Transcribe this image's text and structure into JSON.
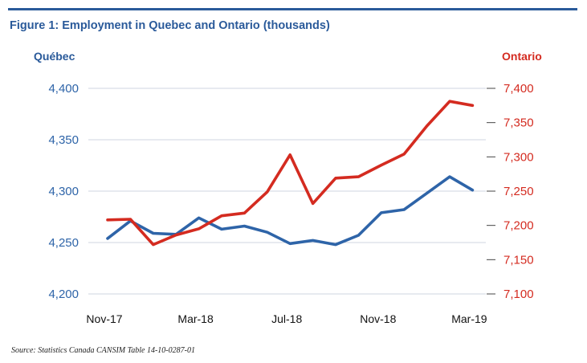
{
  "chart_data": {
    "type": "line",
    "title": "Figure 1: Employment in Quebec and Ontario (thousands)",
    "source": "Source: Statistics Canada CANSIM Table 14-10-0287-01",
    "x_tick_labels": [
      "Nov-17",
      "Mar-18",
      "Jul-18",
      "Nov-18",
      "Mar-19"
    ],
    "x_tick_indices": [
      0,
      4,
      8,
      12,
      16
    ],
    "left_axis": {
      "label": "Québec",
      "ylim": [
        4200,
        4400
      ],
      "ticks": [
        4200,
        4250,
        4300,
        4350,
        4400
      ],
      "tick_labels": [
        "4,200",
        "4,250",
        "4,300",
        "4,350",
        "4,400"
      ],
      "color": "#2e64a8"
    },
    "right_axis": {
      "label": "Ontario",
      "ylim": [
        7100,
        7400
      ],
      "ticks": [
        7100,
        7150,
        7200,
        7250,
        7300,
        7350,
        7400
      ],
      "tick_labels": [
        "7,100",
        "7,150",
        "7,200",
        "7,250",
        "7,300",
        "7,350",
        "7,400"
      ],
      "color": "#d42b20"
    },
    "grid": "horizontal",
    "series": [
      {
        "name": "Québec",
        "axis": "left",
        "color": "#2e64a8",
        "values": [
          4254,
          4271,
          4259,
          4258,
          4274,
          4263,
          4266,
          4260,
          4249,
          4252,
          4248,
          4257,
          4279,
          4282,
          4298,
          4314,
          4301
        ]
      },
      {
        "name": "Ontario",
        "axis": "right",
        "color": "#d42b20",
        "values": [
          7208,
          7209,
          7172,
          7186,
          7195,
          7214,
          7218,
          7249,
          7303,
          7232,
          7269,
          7271,
          7288,
          7304,
          7345,
          7381,
          7375
        ]
      }
    ]
  }
}
